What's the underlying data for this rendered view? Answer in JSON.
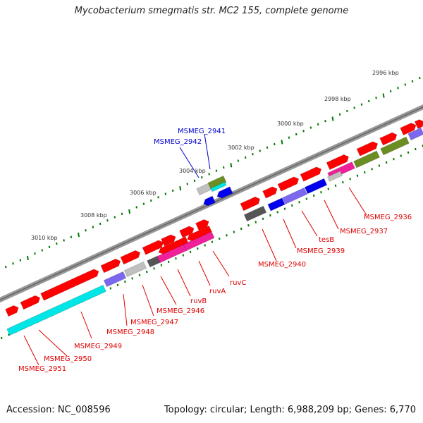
{
  "title": "Mycobacterium smegmatis str. MC2 155, complete genome",
  "accession_text": "Accession: NC_008596",
  "summary_text": "Topology: circular; Length: 6,988,209 bp; Genes: 6,770",
  "scale_labels": [
    "2996 kbp",
    "2998 kbp",
    "3000 kbp",
    "3002 kbp",
    "3004 kbp",
    "3006 kbp",
    "3008 kbp",
    "3010 kbp"
  ],
  "gene_labels_red": [
    "MSMEG_2936",
    "MSMEG_2937",
    "tesB",
    "MSMEG_2939",
    "MSMEG_2940",
    "ruvC",
    "ruvA",
    "ruvB",
    "MSMEG_2946",
    "MSMEG_2947",
    "MSMEG_2948",
    "MSMEG_2949",
    "MSMEG_2950",
    "MSMEG_2951"
  ],
  "gene_labels_blue": [
    "MSMEG_2941",
    "MSMEG_2942"
  ],
  "colors": {
    "backbone": "#8c8c8c",
    "gene_red": "#ff0000",
    "gene_blue": "#0000ee",
    "cog_cyan": "#00e5e5",
    "cog_magenta": "#f0209a",
    "cog_purple": "#7b68ee",
    "cog_olive": "#6b8e23",
    "cog_gray": "#c0c0c0",
    "cog_dark": "#555555",
    "tick_green": "#007a00",
    "label_red": "#dd0000",
    "label_blue": "#0000cc"
  }
}
